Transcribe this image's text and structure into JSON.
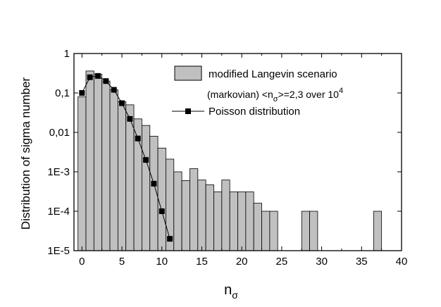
{
  "chart_data": {
    "type": "bar",
    "xlabel": "n",
    "xlabel_sub": "σ",
    "ylabel": "Distribution of sigma number",
    "xlim": [
      -1,
      40
    ],
    "ylim": [
      1e-05,
      1
    ],
    "yscale": "log",
    "x_ticks": [
      0,
      5,
      10,
      15,
      20,
      25,
      30,
      35,
      40
    ],
    "x_tick_labels": [
      "0",
      "5",
      "10",
      "15",
      "20",
      "25",
      "30",
      "35",
      "40"
    ],
    "y_ticks": [
      1e-05,
      0.0001,
      0.001,
      0.01,
      0.1,
      1
    ],
    "y_tick_labels": [
      "1E-5",
      "1E-4",
      "1E-3",
      "0,01",
      "0,1",
      "1"
    ],
    "legend_position": "top-right",
    "bar_color": "#c0c0c0",
    "series": [
      {
        "name": "modified Langevin scenario",
        "kind": "histogram",
        "x": [
          0,
          1,
          2,
          3,
          4,
          5,
          6,
          7,
          8,
          9,
          10,
          11,
          12,
          13,
          14,
          15,
          16,
          17,
          18,
          19,
          20,
          21,
          22,
          23,
          24,
          28,
          29,
          37
        ],
        "values": [
          0.08,
          0.36,
          0.3,
          0.2,
          0.12,
          0.06,
          0.05,
          0.022,
          0.015,
          0.008,
          0.004,
          0.0021,
          0.001,
          0.0006,
          0.0012,
          0.00062,
          0.00047,
          0.00031,
          0.00062,
          0.00031,
          0.00031,
          0.00031,
          0.00016,
          0.0001,
          0.0001,
          0.0001,
          0.0001,
          0.0001
        ]
      },
      {
        "name": "Poisson distribution",
        "kind": "line-markers",
        "x": [
          0,
          1,
          2,
          3,
          4,
          5,
          6,
          7,
          8,
          9,
          10,
          11
        ],
        "values": [
          0.1,
          0.25,
          0.27,
          0.2,
          0.12,
          0.055,
          0.022,
          0.007,
          0.002,
          0.0005,
          0.0001,
          2e-05
        ]
      }
    ],
    "annotation": {
      "prefix": "(markovian)  <n",
      "sub": "σ",
      "middle": ">=2,3 over 10",
      "sup": "4"
    }
  }
}
